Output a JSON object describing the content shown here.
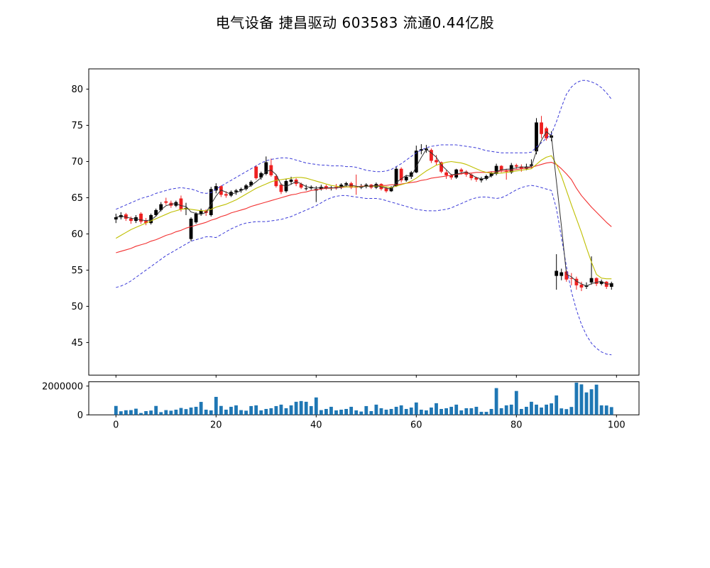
{
  "title": "电气设备 捷昌驱动 603583 流通0.44亿股",
  "chart_data": {
    "type": "candlestick+volume",
    "title": "电气设备 捷昌驱动 603583 流通0.44亿股",
    "legend_position": "none",
    "grid": false,
    "colors": {
      "up": "#000000",
      "down": "#ee2020",
      "ma3": "#333333",
      "ma10": "#bfbf00",
      "ma30": "#f23030",
      "boll": "#3a3ad8",
      "volume": "#1f77b4",
      "axis": "#000000"
    },
    "price_axis": {
      "ticks": [
        45,
        50,
        55,
        60,
        65,
        70,
        75,
        80
      ],
      "range": [
        40.5,
        82.8
      ]
    },
    "x_axis": {
      "ticks": [
        0,
        20,
        40,
        60,
        80,
        100
      ],
      "range": [
        -5.4,
        104.5
      ]
    },
    "volume_axis": {
      "ticks": [
        0,
        2000000
      ],
      "tick_labels": [
        "0",
        "2000000"
      ],
      "range": [
        0,
        2300000
      ]
    },
    "open": [
      62.0,
      62.3,
      62.7,
      62.1,
      61.8,
      62.8,
      61.8,
      61.5,
      62.6,
      63.3,
      64.5,
      64.3,
      63.9,
      64.9,
      63.4,
      59.3,
      61.6,
      62.8,
      63.2,
      62.6,
      66.0,
      66.6,
      65.5,
      65.3,
      65.8,
      66.0,
      66.2,
      66.7,
      69.3,
      67.8,
      68.3,
      69.5,
      68.0,
      66.8,
      65.9,
      67.2,
      67.5,
      66.9,
      66.3,
      66.3,
      66.0,
      66.2,
      66.6,
      66.3,
      66.5,
      66.4,
      66.8,
      67.0,
      66.5,
      66.4,
      66.6,
      66.8,
      66.4,
      66.9,
      66.3,
      65.9,
      66.6,
      69.0,
      67.4,
      67.9,
      68.5,
      71.5,
      71.6,
      71.6,
      70.2,
      69.9,
      68.5,
      68.1,
      67.8,
      68.9,
      68.6,
      68.2,
      67.8,
      67.4,
      67.6,
      68.0,
      68.3,
      69.4,
      68.8,
      68.5,
      69.5,
      69.3,
      69.0,
      69.4,
      71.4,
      75.4,
      74.6,
      73.3,
      54.2,
      54.2,
      54.8,
      53.9,
      53.8,
      53.0,
      52.7,
      53.3,
      53.9,
      53.1,
      53.4,
      52.7
    ],
    "high": [
      62.8,
      63.0,
      62.9,
      62.4,
      62.6,
      63.0,
      62.2,
      62.8,
      63.5,
      64.4,
      65.0,
      64.6,
      64.6,
      65.3,
      64.3,
      62.3,
      63.0,
      63.5,
      63.4,
      66.5,
      67.0,
      66.7,
      65.9,
      66.0,
      66.2,
      66.4,
      66.9,
      67.4,
      69.5,
      68.6,
      70.7,
      70.4,
      68.2,
      67.0,
      67.6,
      67.9,
      67.7,
      67.1,
      66.8,
      66.7,
      66.6,
      66.8,
      66.8,
      66.6,
      66.9,
      67.0,
      67.2,
      67.2,
      68.2,
      66.9,
      67.0,
      66.9,
      67.1,
      67.0,
      66.5,
      66.6,
      69.3,
      69.2,
      68.1,
      68.7,
      72.2,
      72.4,
      72.3,
      71.8,
      70.9,
      70.0,
      68.8,
      68.3,
      69.0,
      69.1,
      68.8,
      68.4,
      67.9,
      67.9,
      68.2,
      68.6,
      69.7,
      69.5,
      69.0,
      69.8,
      69.7,
      69.6,
      69.7,
      70.3,
      76.0,
      76.3,
      74.8,
      74.2,
      57.2,
      55.2,
      55.0,
      54.6,
      54.1,
      53.4,
      53.3,
      56.9,
      54.0,
      53.7,
      53.5,
      53.4
    ],
    "low": [
      61.5,
      62.0,
      61.8,
      61.4,
      61.5,
      61.4,
      61.2,
      61.3,
      62.4,
      63.1,
      64.0,
      63.6,
      63.7,
      63.1,
      62.6,
      59.0,
      61.4,
      62.5,
      62.5,
      62.4,
      65.6,
      65.1,
      65.0,
      65.1,
      65.4,
      65.7,
      66.0,
      66.5,
      67.5,
      67.5,
      68.1,
      67.9,
      66.4,
      65.5,
      65.7,
      66.8,
      66.6,
      66.2,
      66.0,
      66.1,
      64.4,
      66.0,
      66.1,
      66.0,
      66.1,
      66.2,
      66.5,
      66.2,
      65.4,
      66.2,
      66.3,
      66.2,
      66.2,
      66.0,
      65.7,
      65.8,
      66.5,
      67.1,
      67.2,
      67.6,
      68.4,
      71.0,
      71.2,
      69.8,
      69.5,
      68.4,
      67.6,
      67.5,
      67.6,
      68.2,
      67.9,
      67.4,
      67.2,
      67.1,
      67.4,
      67.8,
      68.1,
      68.5,
      67.5,
      68.3,
      69.0,
      68.6,
      68.8,
      69.1,
      71.0,
      73.2,
      72.9,
      72.8,
      52.3,
      53.6,
      53.4,
      52.9,
      52.3,
      52.1,
      52.4,
      53.0,
      52.8,
      52.9,
      52.4,
      52.3
    ],
    "close": [
      62.3,
      62.6,
      62.1,
      61.8,
      62.3,
      61.7,
      61.5,
      62.6,
      63.3,
      64.1,
      64.3,
      63.9,
      64.4,
      63.4,
      63.6,
      62.1,
      62.8,
      63.2,
      62.9,
      66.2,
      66.6,
      65.4,
      65.3,
      65.8,
      66.0,
      66.2,
      66.7,
      67.2,
      67.7,
      68.4,
      69.9,
      68.1,
      66.6,
      65.8,
      67.3,
      67.5,
      66.9,
      66.4,
      66.3,
      66.5,
      66.2,
      66.5,
      66.3,
      66.4,
      66.3,
      66.8,
      67.0,
      66.4,
      66.4,
      66.6,
      66.8,
      66.4,
      66.9,
      66.2,
      65.9,
      66.4,
      69.0,
      67.4,
      67.9,
      68.5,
      71.5,
      71.7,
      71.8,
      70.1,
      69.9,
      68.6,
      68.1,
      67.8,
      68.9,
      68.6,
      68.2,
      67.7,
      67.5,
      67.6,
      68.0,
      68.4,
      69.4,
      68.8,
      68.6,
      69.5,
      69.3,
      69.0,
      69.3,
      69.6,
      75.4,
      73.8,
      73.2,
      73.6,
      54.9,
      54.7,
      53.7,
      53.8,
      52.9,
      52.6,
      52.9,
      53.9,
      53.1,
      53.4,
      52.7,
      53.2
    ],
    "volume": [
      620000,
      250000,
      320000,
      330000,
      430000,
      130000,
      260000,
      300000,
      620000,
      190000,
      330000,
      290000,
      360000,
      480000,
      400000,
      510000,
      560000,
      900000,
      360000,
      310000,
      1250000,
      620000,
      360000,
      560000,
      660000,
      330000,
      290000,
      610000,
      660000,
      310000,
      410000,
      460000,
      610000,
      710000,
      460000,
      660000,
      910000,
      960000,
      910000,
      610000,
      1210000,
      330000,
      410000,
      560000,
      310000,
      360000,
      410000,
      560000,
      310000,
      230000,
      610000,
      260000,
      710000,
      460000,
      360000,
      410000,
      560000,
      660000,
      410000,
      510000,
      860000,
      360000,
      310000,
      510000,
      810000,
      410000,
      460000,
      560000,
      710000,
      310000,
      460000,
      460000,
      560000,
      210000,
      210000,
      410000,
      1860000,
      460000,
      660000,
      710000,
      1660000,
      410000,
      560000,
      910000,
      710000,
      510000,
      710000,
      800000,
      1350000,
      450000,
      400000,
      550000,
      2240000,
      2120000,
      1560000,
      1780000,
      2100000,
      660000,
      650000,
      540000
    ],
    "boll_upper": [
      63.4,
      63.7,
      64.0,
      64.3,
      64.6,
      64.9,
      65.1,
      65.3,
      65.6,
      65.8,
      66.0,
      66.2,
      66.3,
      66.4,
      66.3,
      66.2,
      66.0,
      65.7,
      65.6,
      65.7,
      66.2,
      66.6,
      67.0,
      67.4,
      67.8,
      68.2,
      68.6,
      69.0,
      69.4,
      69.8,
      70.1,
      70.3,
      70.4,
      70.5,
      70.5,
      70.4,
      70.2,
      70.0,
      69.8,
      69.7,
      69.6,
      69.5,
      69.5,
      69.4,
      69.4,
      69.4,
      69.3,
      69.3,
      69.2,
      69.0,
      68.8,
      68.7,
      68.6,
      68.6,
      68.7,
      68.9,
      69.3,
      69.7,
      70.2,
      70.7,
      71.2,
      71.6,
      71.9,
      72.1,
      72.2,
      72.3,
      72.3,
      72.3,
      72.3,
      72.2,
      72.1,
      72.0,
      71.9,
      71.7,
      71.5,
      71.4,
      71.3,
      71.2,
      71.2,
      71.2,
      71.2,
      71.2,
      71.2,
      71.3,
      72.0,
      72.6,
      73.2,
      73.8,
      75.5,
      77.5,
      79.3,
      80.3,
      80.9,
      81.2,
      81.2,
      81.0,
      80.7,
      80.2,
      79.5,
      78.6
    ],
    "boll_lower": [
      52.6,
      52.8,
      53.1,
      53.5,
      54.0,
      54.5,
      55.0,
      55.5,
      56.0,
      56.5,
      57.0,
      57.4,
      57.8,
      58.2,
      58.6,
      59.0,
      59.2,
      59.4,
      59.6,
      59.6,
      59.5,
      59.9,
      60.3,
      60.7,
      61.0,
      61.3,
      61.5,
      61.6,
      61.7,
      61.7,
      61.7,
      61.8,
      61.9,
      62.0,
      62.2,
      62.4,
      62.7,
      63.0,
      63.3,
      63.6,
      63.9,
      64.3,
      64.7,
      65.0,
      65.2,
      65.3,
      65.3,
      65.2,
      65.1,
      65.0,
      64.9,
      64.9,
      64.9,
      64.8,
      64.6,
      64.4,
      64.2,
      64.0,
      63.8,
      63.6,
      63.4,
      63.3,
      63.2,
      63.2,
      63.2,
      63.3,
      63.4,
      63.6,
      63.9,
      64.2,
      64.5,
      64.8,
      65.0,
      65.1,
      65.1,
      65.0,
      64.9,
      65.0,
      65.3,
      65.7,
      66.1,
      66.4,
      66.6,
      66.7,
      66.6,
      66.4,
      66.2,
      66.0,
      63.5,
      59.5,
      55.5,
      52.0,
      49.5,
      47.5,
      46.0,
      44.9,
      44.2,
      43.7,
      43.4,
      43.3
    ],
    "ma10": [
      59.4,
      59.8,
      60.2,
      60.6,
      60.9,
      61.2,
      61.5,
      61.8,
      62.1,
      62.4,
      62.7,
      63.0,
      63.2,
      63.4,
      63.5,
      63.4,
      63.3,
      63.2,
      63.2,
      63.4,
      63.7,
      63.9,
      64.1,
      64.4,
      64.7,
      65.1,
      65.5,
      65.9,
      66.3,
      66.6,
      66.9,
      67.2,
      67.4,
      67.5,
      67.6,
      67.7,
      67.8,
      67.8,
      67.7,
      67.5,
      67.3,
      67.1,
      66.9,
      66.7,
      66.6,
      66.5,
      66.5,
      66.5,
      66.5,
      66.5,
      66.6,
      66.6,
      66.6,
      66.6,
      66.5,
      66.4,
      66.6,
      66.8,
      67.0,
      67.3,
      67.7,
      68.2,
      68.7,
      69.1,
      69.5,
      69.7,
      69.9,
      70.0,
      69.9,
      69.8,
      69.6,
      69.3,
      69.0,
      68.7,
      68.5,
      68.4,
      68.4,
      68.4,
      68.5,
      68.6,
      68.7,
      68.8,
      68.9,
      69.0,
      69.6,
      70.2,
      70.6,
      70.8,
      69.6,
      68.0,
      66.0,
      64.0,
      62.1,
      60.2,
      58.1,
      56.1,
      54.4,
      53.9,
      53.8,
      53.8
    ],
    "ma30": [
      57.4,
      57.6,
      57.8,
      58.0,
      58.3,
      58.5,
      58.7,
      59.0,
      59.2,
      59.5,
      59.8,
      60.0,
      60.3,
      60.5,
      60.8,
      61.0,
      61.2,
      61.4,
      61.6,
      61.9,
      62.1,
      62.4,
      62.6,
      62.9,
      63.1,
      63.3,
      63.5,
      63.8,
      64.0,
      64.2,
      64.4,
      64.6,
      64.8,
      65.0,
      65.2,
      65.4,
      65.5,
      65.7,
      65.8,
      66.0,
      66.1,
      66.2,
      66.3,
      66.3,
      66.4,
      66.4,
      66.5,
      66.5,
      66.5,
      66.6,
      66.6,
      66.6,
      66.7,
      66.7,
      66.7,
      66.8,
      66.8,
      66.9,
      67.0,
      67.1,
      67.2,
      67.4,
      67.5,
      67.7,
      67.8,
      67.9,
      68.0,
      68.1,
      68.2,
      68.3,
      68.4,
      68.4,
      68.5,
      68.5,
      68.5,
      68.6,
      68.6,
      68.7,
      68.7,
      68.8,
      68.9,
      69.0,
      69.1,
      69.2,
      69.4,
      69.6,
      69.8,
      69.9,
      69.6,
      69.0,
      68.3,
      67.5,
      66.3,
      65.3,
      64.5,
      63.7,
      63.0,
      62.3,
      61.6,
      61.0
    ]
  }
}
